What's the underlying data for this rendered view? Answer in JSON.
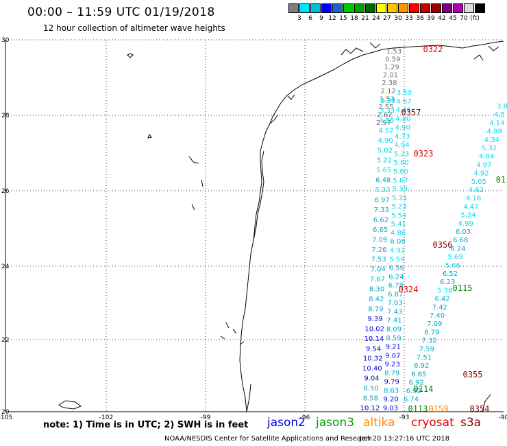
{
  "title": "00:00 – 11:59 UTC 01/19/2018",
  "subtitle": "12 hour collection of altimeter wave heights",
  "scale": {
    "colors": [
      "#7f7f7f",
      "#00e5ff",
      "#00bcd4",
      "#0000ff",
      "#1e64c8",
      "#00c800",
      "#00a000",
      "#006400",
      "#ffff00",
      "#ffc800",
      "#ff9600",
      "#ff0000",
      "#c80000",
      "#960000",
      "#7f007f",
      "#b400b4",
      "#dcdcdc",
      "#000000"
    ],
    "labels": [
      "3",
      "6",
      "9",
      "12",
      "15",
      "18",
      "21",
      "24",
      "27",
      "30",
      "33",
      "36",
      "39",
      "42",
      "45",
      "70",
      "(ft)"
    ]
  },
  "axes": {
    "x_labels": [
      "-105",
      "-102",
      "-99",
      "-96",
      "-93",
      "-90"
    ],
    "y_labels": [
      "30",
      "28",
      "26",
      "24",
      "22",
      "20"
    ]
  },
  "passes": [
    {
      "label": "0322",
      "color": "#e00000"
    },
    {
      "label": "0357",
      "color": "#800000"
    },
    {
      "label": "0323",
      "color": "#e00000"
    },
    {
      "label": "01",
      "color": "#008000"
    },
    {
      "label": "0356",
      "color": "#800000"
    },
    {
      "label": "0115",
      "color": "#008000"
    },
    {
      "label": "0324",
      "color": "#e00000"
    },
    {
      "label": "0355",
      "color": "#800000"
    },
    {
      "label": "0114",
      "color": "#008000"
    },
    {
      "label": "0354",
      "color": "#800000"
    },
    {
      "label": "0113",
      "color": "#008000"
    },
    {
      "label": "0159",
      "color": "#ff8c00"
    }
  ],
  "track_values": {
    "gray": [
      "1.53",
      "0.59",
      "1.29",
      "2.01",
      "2.38",
      "2.12",
      "1.53",
      "2.55",
      "2.62",
      "2.97"
    ],
    "left_track": [
      "3.39",
      "3.33",
      "4.55",
      "4.52",
      "4.90",
      "5.02",
      "5.22",
      "5.65",
      "6.48",
      "5.33",
      "6.97",
      "7.33",
      "6.62",
      "6.65",
      "7.09",
      "7.26",
      "7.53",
      "7.04",
      "7.67",
      "8.30",
      "8.42",
      "8.79",
      "9.39",
      "10.02",
      "10.14",
      "9.54",
      "10.32",
      "10.40",
      "9.04",
      "8.50",
      "8.58",
      "10.12"
    ],
    "mid_track": [
      "3.59",
      "4.67",
      "4.42",
      "4.80",
      "4.90",
      "4.73",
      "4.94",
      "5.23",
      "5.80",
      "5.60",
      "5.67",
      "5.39",
      "5.31",
      "5.23",
      "5.54",
      "5.41",
      "4.86",
      "6.08",
      "4.92",
      "5.54",
      "6.56",
      "6.24",
      "6.78",
      "6.87",
      "7.03",
      "7.43",
      "7.41",
      "8.09",
      "8.59",
      "9.21",
      "9.07",
      "9.23",
      "8.79",
      "9.79",
      "8.63",
      "9.20",
      "9.03"
    ],
    "right_track": [
      "3.8",
      "4.5",
      "4.14",
      "4.99",
      "4.34",
      "5.32",
      "4.84",
      "4.97",
      "4.92",
      "5.05",
      "4.62",
      "4.16",
      "4.47",
      "5.24",
      "4.99",
      "6.03",
      "6.68",
      "6.24",
      "5.69",
      "5.66",
      "6.52",
      "6.23",
      "5.38",
      "6.42",
      "7.42",
      "7.40",
      "7.09",
      "6.79",
      "7.32",
      "7.59",
      "7.51",
      "6.92",
      "6.65",
      "6.92",
      "6.92",
      "6.74"
    ]
  },
  "note": "note: 1) Time is in UTC; 2) SWH is in feet",
  "legend": [
    {
      "label": "jason2",
      "color": "#0000dd"
    },
    {
      "label": "jason3",
      "color": "#00a000"
    },
    {
      "label": "altika",
      "color": "#ff8c00"
    },
    {
      "label": "cryosat",
      "color": "#e00000"
    },
    {
      "label": "s3a",
      "color": "#800000"
    }
  ],
  "footer_left": "NOAA/NESDIS Center for Satellite Applications and Research",
  "footer_right": "Jan 20 13:27:16 UTC 2018"
}
